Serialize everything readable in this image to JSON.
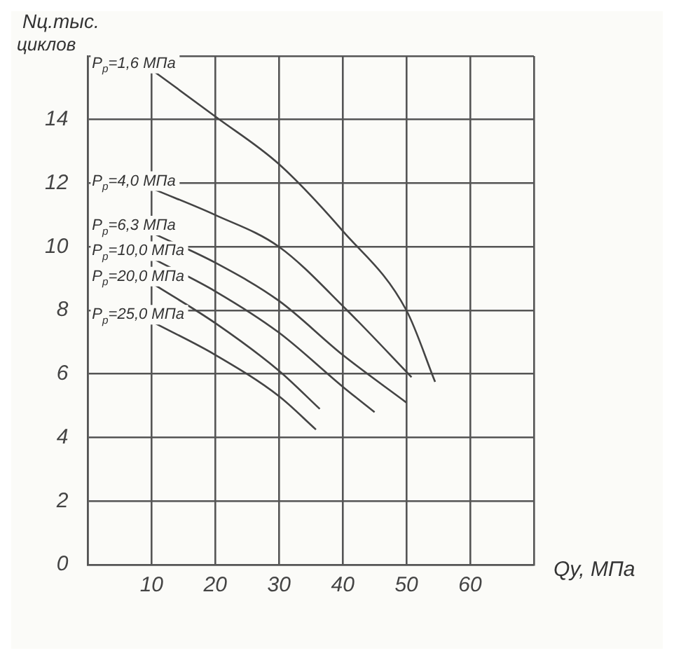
{
  "chart_data": {
    "type": "line",
    "xlabel": "Qу, МПа",
    "ylabel": "Nц.тыс. циклов",
    "xlim": [
      0,
      70
    ],
    "xticks": [
      {
        "value": 0,
        "label": null
      },
      10,
      20,
      30,
      40,
      50,
      60,
      {
        "value": 70,
        "label": null
      }
    ],
    "ylim": [
      0,
      16
    ],
    "yticks": [
      0,
      2,
      4,
      6,
      8,
      10,
      12,
      14,
      {
        "value": 16,
        "label": null
      }
    ],
    "grid": true,
    "legend": false,
    "marker": "none",
    "line_style": "solid",
    "series": [
      {
        "name": "P$_{р}$=1,6 МПа",
        "color": "#444444",
        "x": [
          10.5,
          20,
          30,
          40,
          50,
          54.5
        ],
        "values": [
          15.5,
          14.1,
          12.6,
          10.5,
          8,
          5.75
        ]
      },
      {
        "name": "P$_{р}$=4,0 МПа",
        "color": "#444444",
        "x": [
          10.5,
          20,
          30,
          40.7,
          50.8
        ],
        "values": [
          11.8,
          11,
          10,
          8,
          5.9
        ]
      },
      {
        "name": "P$_{р}$=6,3 МПа",
        "color": "#444444",
        "x": [
          10.5,
          20,
          30,
          40,
          50
        ],
        "values": [
          10.4,
          9.5,
          8.3,
          6.6,
          5.1
        ]
      },
      {
        "name": "P$_{р}$=10,0 МПа",
        "color": "#444444",
        "x": [
          10.5,
          20,
          30,
          40,
          45
        ],
        "values": [
          9.6,
          8.6,
          7.3,
          5.6,
          4.8
        ]
      },
      {
        "name": "P$_{р}$=20,0 МПа",
        "color": "#444444",
        "x": [
          10.5,
          20,
          30,
          36.4
        ],
        "values": [
          8.8,
          7.6,
          6.1,
          4.9
        ]
      },
      {
        "name": "P$_{р}$=25,0 МПа",
        "color": "#444444",
        "x": [
          10.5,
          20,
          30,
          35.8
        ],
        "values": [
          7.6,
          6.6,
          5.3,
          4.25
        ]
      }
    ]
  }
}
